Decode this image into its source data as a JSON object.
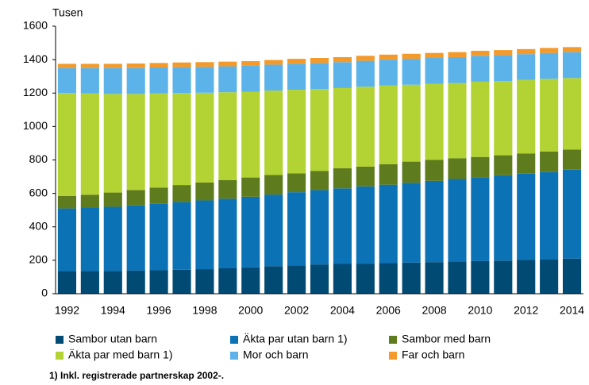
{
  "chart_data": {
    "type": "stacked_bar",
    "y_label": "Tusen",
    "footnote": "1) Inkl. registrerade partnerskap 2002-.",
    "categories": [
      "1992",
      null,
      "1994",
      null,
      "1996",
      null,
      "1998",
      null,
      "2000",
      null,
      "2002",
      null,
      "2004",
      null,
      "2006",
      null,
      "2008",
      null,
      "2010",
      null,
      "2012",
      null,
      "2014"
    ],
    "series": [
      {
        "name": "Sambor utan barn",
        "color": "#004a74",
        "values": [
          135,
          135,
          136,
          138,
          140,
          143,
          147,
          152,
          158,
          165,
          170,
          175,
          178,
          180,
          183,
          186,
          189,
          192,
          195,
          198,
          202,
          206,
          210
        ]
      },
      {
        "name": "Äkta par utan barn 1)",
        "color": "#0b72b5",
        "values": [
          375,
          380,
          384,
          390,
          398,
          405,
          411,
          416,
          422,
          428,
          437,
          445,
          452,
          462,
          469,
          477,
          486,
          494,
          502,
          510,
          516,
          522,
          532
        ]
      },
      {
        "name": "Sambor med barn",
        "color": "#5e7b1e",
        "values": [
          75,
          77,
          85,
          92,
          97,
          102,
          107,
          112,
          115,
          117,
          113,
          115,
          120,
          118,
          123,
          127,
          125,
          124,
          121,
          120,
          120,
          122,
          120
        ]
      },
      {
        "name": "Äkta par med barn 1)",
        "color": "#b3d334",
        "values": [
          615,
          606,
          590,
          575,
          563,
          550,
          537,
          525,
          513,
          505,
          500,
          490,
          480,
          478,
          470,
          460,
          455,
          450,
          450,
          444,
          440,
          435,
          428
        ]
      },
      {
        "name": "Mor och barn",
        "color": "#5bb3e9",
        "values": [
          150,
          152,
          155,
          155,
          155,
          155,
          155,
          155,
          155,
          155,
          155,
          155,
          155,
          155,
          155,
          155,
          155,
          155,
          155,
          155,
          155,
          155,
          155
        ]
      },
      {
        "name": "Far och barn",
        "color": "#f39a2b",
        "values": [
          25,
          25,
          25,
          27,
          27,
          28,
          28,
          28,
          28,
          28,
          30,
          30,
          30,
          30,
          30,
          30,
          30,
          30,
          30,
          30,
          30,
          30,
          30
        ]
      }
    ],
    "ylim": [
      0,
      1600
    ],
    "yticks": [
      0,
      200,
      400,
      600,
      800,
      1000,
      1200,
      1400,
      1600
    ],
    "legend": "bottom"
  }
}
